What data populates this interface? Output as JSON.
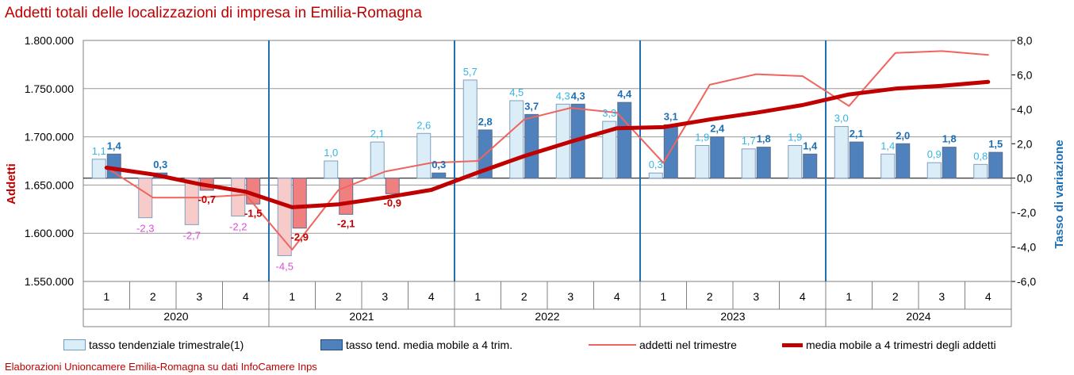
{
  "title": "Addetti totali delle localizzazioni di impresa in Emilia-Romagna",
  "footer": "Elaborazioni Unioncamere Emilia-Romagna su dati InfoCamere Inps",
  "colors": {
    "title": "#c00000",
    "light_bar": "#dbeef7",
    "light_bar_neg": "#f8cbcb",
    "dark_bar": "#4f81bd",
    "dark_bar_neg": "#f08080",
    "thin_line": "#f0645f",
    "thick_line": "#c00000",
    "label_light_pos": "#33b5e5",
    "label_light_neg": "#d94fd6",
    "label_dark_pos": "#1f6fb4",
    "label_dark_neg": "#c00000",
    "year_divider": "#1f6fb4",
    "right_axis_title": "#1f6fb4"
  },
  "legend": {
    "light": "tasso tendenziale trimestrale(1)",
    "dark": "tasso tend. media mobile a 4 trim.",
    "thin": "addetti nel trimestre",
    "thick": "media mobile a 4 trimestri degli addetti"
  },
  "chart_data": {
    "type": "bar",
    "quarters": [
      "1",
      "2",
      "3",
      "4",
      "1",
      "2",
      "3",
      "4",
      "1",
      "2",
      "3",
      "4",
      "1",
      "2",
      "3",
      "4",
      "1",
      "2",
      "3",
      "4"
    ],
    "years": [
      "2020",
      "2021",
      "2022",
      "2023",
      "2024"
    ],
    "left_axis": {
      "title": "Addetti",
      "ylim": [
        1550000,
        1800000
      ],
      "ticks": [
        "1.550.000",
        "1.600.000",
        "1.650.000",
        "1.700.000",
        "1.750.000",
        "1.800.000"
      ]
    },
    "right_axis": {
      "title": "Tasso di variazione",
      "ylim": [
        -6,
        8
      ],
      "ticks": [
        "-6,0",
        "-4,0",
        "-2,0",
        "0,0",
        "2,0",
        "4,0",
        "6,0",
        "8,0"
      ]
    },
    "series": [
      {
        "name": "tasso tendenziale trimestrale(1)",
        "axis": "right",
        "type": "bar",
        "values": [
          1.1,
          -2.3,
          -2.7,
          -2.2,
          -4.5,
          1.0,
          2.1,
          2.6,
          5.7,
          4.5,
          4.3,
          3.3,
          0.3,
          1.9,
          1.7,
          1.9,
          3.0,
          1.4,
          0.9,
          0.8
        ],
        "labels": [
          "1,1",
          "-2,3",
          "-2,7",
          "-2,2",
          "-4,5",
          "1,0",
          "2,1",
          "2,6",
          "5,7",
          "4,5",
          "4,3",
          "3,3",
          "0,3",
          "1,9",
          "1,7",
          "1,9",
          "3,0",
          "1,4",
          "0,9",
          "0,8"
        ]
      },
      {
        "name": "tasso tend. media mobile a 4 trim.",
        "axis": "right",
        "type": "bar",
        "values": [
          1.4,
          0.3,
          -0.7,
          -1.5,
          -2.9,
          -2.1,
          -0.9,
          0.3,
          2.8,
          3.7,
          4.3,
          4.4,
          3.1,
          2.4,
          1.8,
          1.4,
          2.1,
          2.0,
          1.8,
          1.5
        ],
        "labels": [
          "1,4",
          "0,3",
          "-0,7",
          "-1,5",
          "-2,9",
          "-2,1",
          "-0,9",
          "0,3",
          "2,8",
          "3,7",
          "4,3",
          "4,4",
          "3,1",
          "2,4",
          "1,8",
          "1,4",
          "2,1",
          "2,0",
          "1,8",
          "1,5"
        ]
      },
      {
        "name": "addetti nel trimestre",
        "axis": "left",
        "type": "line",
        "values": [
          1668000,
          1637000,
          1637000,
          1640000,
          1583000,
          1645000,
          1664000,
          1673000,
          1675000,
          1718000,
          1730000,
          1725000,
          1673000,
          1754000,
          1765000,
          1763000,
          1732000,
          1787000,
          1789000,
          1785000
        ]
      },
      {
        "name": "media mobile a 4 trimestri degli addetti",
        "axis": "left",
        "type": "line",
        "values": [
          1668000,
          1661000,
          1651000,
          1643000,
          1627000,
          1630000,
          1637000,
          1645000,
          1663000,
          1680000,
          1695000,
          1709000,
          1710000,
          1718000,
          1725000,
          1733000,
          1744000,
          1750000,
          1753000,
          1757000
        ]
      }
    ]
  }
}
